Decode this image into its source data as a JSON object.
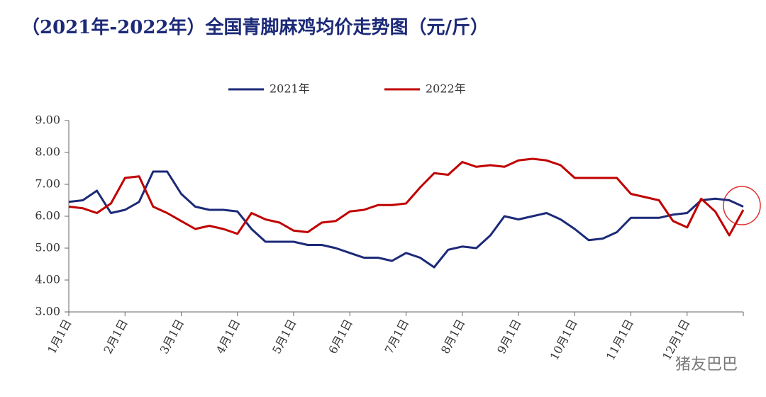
{
  "chart_data": {
    "type": "line",
    "title": "（2021年-2022年）全国青脚麻鸡均价走势图（元/斤）",
    "categories": [
      "1月1日",
      null,
      null,
      null,
      "2月1日",
      null,
      null,
      null,
      "3月1日",
      null,
      null,
      null,
      "4月1日",
      null,
      null,
      null,
      "5月1日",
      null,
      null,
      null,
      "6月1日",
      null,
      null,
      null,
      "7月1日",
      null,
      null,
      null,
      "8月1日",
      null,
      null,
      null,
      "9月1日",
      null,
      null,
      null,
      "10月1日",
      null,
      null,
      null,
      "11月1日",
      null,
      null,
      null,
      "12月1日",
      null,
      null,
      null,
      null
    ],
    "series": [
      {
        "name": "2021年",
        "color": "#1c2a78",
        "values": [
          6.45,
          6.5,
          6.8,
          6.1,
          6.2,
          6.45,
          7.4,
          7.4,
          6.7,
          6.3,
          6.2,
          6.2,
          6.15,
          5.6,
          5.2,
          5.2,
          5.2,
          5.1,
          5.1,
          5.0,
          4.85,
          4.7,
          4.7,
          4.6,
          4.85,
          4.7,
          4.4,
          4.95,
          5.05,
          5.0,
          5.4,
          6.0,
          5.9,
          6.0,
          6.1,
          5.9,
          5.6,
          5.25,
          5.3,
          5.5,
          5.95,
          5.95,
          5.95,
          6.05,
          6.1,
          6.5,
          6.55,
          6.5,
          6.3
        ]
      },
      {
        "name": "2022年",
        "color": "#c00000",
        "values": [
          6.3,
          6.25,
          6.1,
          6.4,
          7.2,
          7.25,
          6.3,
          6.1,
          5.85,
          5.6,
          5.7,
          5.6,
          5.45,
          6.1,
          5.9,
          5.8,
          5.55,
          5.5,
          5.8,
          5.85,
          6.15,
          6.2,
          6.35,
          6.35,
          6.4,
          6.9,
          7.35,
          7.3,
          7.7,
          7.55,
          7.6,
          7.55,
          7.75,
          7.8,
          7.75,
          7.6,
          7.2,
          7.2,
          7.2,
          7.2,
          6.7,
          6.6,
          6.5,
          5.85,
          5.65,
          6.55,
          6.15,
          5.4,
          6.2
        ]
      }
    ],
    "ylim": [
      3,
      9
    ],
    "yticks": [
      {
        "value": 3,
        "label": "3.00"
      },
      {
        "value": 4,
        "label": "4.00"
      },
      {
        "value": 5,
        "label": "5.00"
      },
      {
        "value": 6,
        "label": "6.00"
      },
      {
        "value": 7,
        "label": "7.00"
      },
      {
        "value": 8,
        "label": "8.00"
      },
      {
        "value": 9,
        "label": "9.00"
      }
    ],
    "legend": "top",
    "watermark": "猪友巴巴"
  }
}
